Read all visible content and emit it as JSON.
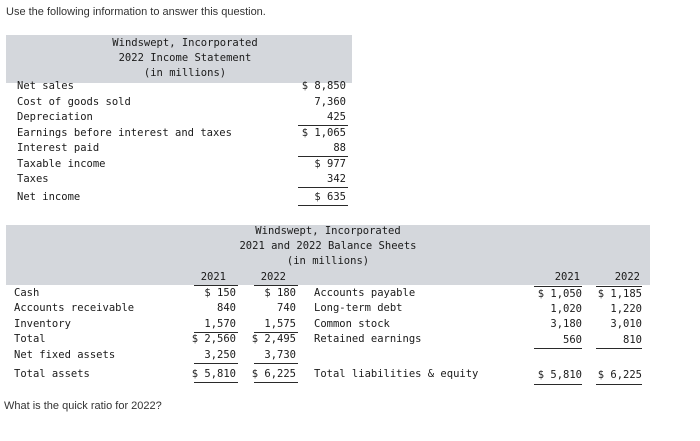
{
  "instruction": "Use the following information to answer this question.",
  "income_statement": {
    "title_line1": "Windswept, Incorporated",
    "title_line2": "2022 Income Statement",
    "title_line3": "(in millions)",
    "rows": [
      {
        "label": "Net sales",
        "value": "$ 8,850"
      },
      {
        "label": "Cost of goods sold",
        "value": "7,360"
      },
      {
        "label": "Depreciation",
        "value": "425"
      },
      {
        "label": "Earnings before interest and taxes",
        "value": "$ 1,065"
      },
      {
        "label": "Interest paid",
        "value": "88"
      },
      {
        "label": "Taxable income",
        "value": "$ 977"
      },
      {
        "label": "Taxes",
        "value": "342"
      },
      {
        "label": "Net income",
        "value": "$ 635"
      }
    ]
  },
  "balance_sheet": {
    "title_line1": "Windswept, Incorporated",
    "title_line2": "2021 and 2022 Balance Sheets",
    "title_line3": "(in millions)",
    "year_headers": [
      "2021",
      "2022"
    ],
    "assets": [
      {
        "label": "Cash",
        "y2021": "$ 150",
        "y2022": "$ 180"
      },
      {
        "label": "Accounts receivable",
        "y2021": "840",
        "y2022": "740"
      },
      {
        "label": "Inventory",
        "y2021": "1,570",
        "y2022": "1,575"
      },
      {
        "label": "Total",
        "y2021": "$ 2,560",
        "y2022": "$ 2,495"
      },
      {
        "label": "Net fixed assets",
        "y2021": "3,250",
        "y2022": "3,730"
      },
      {
        "label": "Total assets",
        "y2021": "$ 5,810",
        "y2022": "$ 6,225"
      }
    ],
    "liabilities": [
      {
        "label": "Accounts payable",
        "y2021": "$ 1,050",
        "y2022": "$ 1,185"
      },
      {
        "label": "Long-term debt",
        "y2021": "1,020",
        "y2022": "1,220"
      },
      {
        "label": "Common stock",
        "y2021": "3,180",
        "y2022": "3,010"
      },
      {
        "label": "Retained earnings",
        "y2021": "560",
        "y2022": "810"
      },
      {
        "label": "Total liabilities & equity",
        "y2021": "$ 5,810",
        "y2022": "$ 6,225"
      }
    ]
  },
  "question": "What is the quick ratio for 2022?",
  "colors": {
    "header_band": "#d4d7dc",
    "text": "#1a1a1a"
  }
}
